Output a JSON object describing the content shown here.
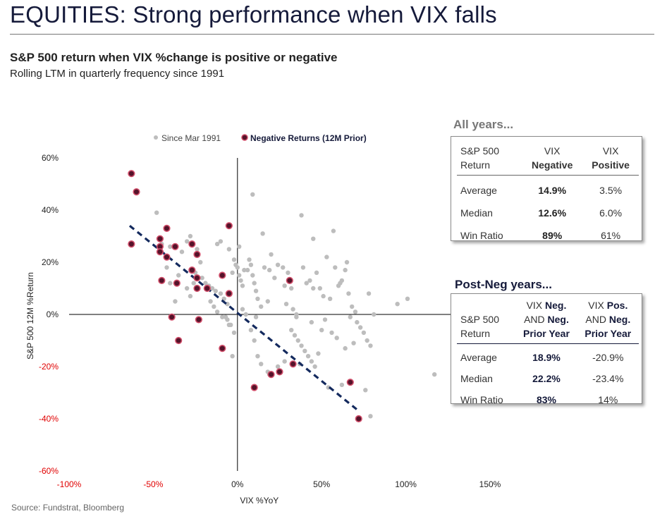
{
  "headline": "EQUITIES: Strong performance when VIX falls",
  "subtitle": "S&P 500 return when VIX %change is positive or negative",
  "subtitle2": "Rolling LTM in quarterly frequency since 1991",
  "source": "Source: Fundstrat, Bloomberg",
  "colors": {
    "navy": "#151a3a",
    "gray_dot": "#bdbdbd",
    "neg_dot_fill": "#55132a",
    "neg_dot_ring": "#d14e6a",
    "negative_tick": "#e00000",
    "trend": "#142a5e"
  },
  "chart_data": {
    "type": "scatter",
    "xlabel": "VIX %YoY",
    "ylabel": "S&P 500 12M %Return",
    "xlim": [
      -100,
      150
    ],
    "ylim": [
      -60,
      60
    ],
    "x_ticks": [
      -100,
      -50,
      0,
      50,
      100,
      150
    ],
    "x_tick_labels": [
      "-100%",
      "-50%",
      "0%",
      "50%",
      "100%",
      "150%"
    ],
    "y_ticks": [
      60,
      40,
      20,
      0,
      -20,
      -40,
      -60
    ],
    "y_tick_labels": [
      "60%",
      "40%",
      "20%",
      "0%",
      "-20%",
      "-40%",
      "-60%"
    ],
    "legend": {
      "position": "top",
      "items": [
        "Since Mar 1991",
        "Negative Returns (12M Prior)"
      ]
    },
    "series": [
      {
        "name": "Since Mar 1991",
        "points": [
          [
            -48,
            39
          ],
          [
            -45,
            27
          ],
          [
            -40,
            26
          ],
          [
            -33,
            24
          ],
          [
            -30,
            28
          ],
          [
            -28,
            30
          ],
          [
            -24,
            25
          ],
          [
            -22,
            20
          ],
          [
            -25,
            16
          ],
          [
            -21,
            14
          ],
          [
            -19,
            12
          ],
          [
            -17,
            11
          ],
          [
            -15,
            10
          ],
          [
            -13,
            9
          ],
          [
            -10,
            8
          ],
          [
            -8,
            6
          ],
          [
            -6,
            4
          ],
          [
            -35,
            15
          ],
          [
            -40,
            12
          ],
          [
            -30,
            10
          ],
          [
            -28,
            7
          ],
          [
            -26,
            12
          ],
          [
            -42,
            18
          ],
          [
            -37,
            5
          ],
          [
            -16,
            5
          ],
          [
            -14,
            3
          ],
          [
            -12,
            1
          ],
          [
            -9,
            -1
          ],
          [
            -6,
            -2
          ],
          [
            -4,
            -4
          ],
          [
            -2,
            -7
          ],
          [
            -10,
            28
          ],
          [
            -12,
            27
          ],
          [
            -5,
            25
          ],
          [
            1,
            26
          ],
          [
            -2,
            21
          ],
          [
            0,
            18
          ],
          [
            1,
            15
          ],
          [
            2,
            13
          ],
          [
            3,
            11
          ],
          [
            -3,
            16
          ],
          [
            -1,
            19
          ],
          [
            4,
            17
          ],
          [
            6,
            17
          ],
          [
            7,
            21
          ],
          [
            8,
            19
          ],
          [
            9,
            15
          ],
          [
            10,
            12
          ],
          [
            11,
            9
          ],
          [
            12,
            6
          ],
          [
            14,
            3
          ],
          [
            15,
            31
          ],
          [
            9,
            46
          ],
          [
            20,
            23
          ],
          [
            16,
            18
          ],
          [
            19,
            17
          ],
          [
            22,
            14
          ],
          [
            24,
            19
          ],
          [
            27,
            18
          ],
          [
            30,
            16
          ],
          [
            28,
            11
          ],
          [
            32,
            10
          ],
          [
            29,
            4
          ],
          [
            33,
            2
          ],
          [
            35,
            0
          ],
          [
            38,
            38
          ],
          [
            39,
            18
          ],
          [
            41,
            12
          ],
          [
            43,
            13
          ],
          [
            45,
            10
          ],
          [
            47,
            16
          ],
          [
            49,
            10
          ],
          [
            51,
            7
          ],
          [
            53,
            22
          ],
          [
            55,
            6
          ],
          [
            57,
            32
          ],
          [
            58,
            18
          ],
          [
            60,
            11
          ],
          [
            61,
            12
          ],
          [
            62,
            13
          ],
          [
            64,
            17
          ],
          [
            65,
            20
          ],
          [
            66,
            8
          ],
          [
            68,
            3
          ],
          [
            70,
            1
          ],
          [
            71,
            -3
          ],
          [
            73,
            -5
          ],
          [
            75,
            -7
          ],
          [
            77,
            -10
          ],
          [
            79,
            -12
          ],
          [
            67,
            -1
          ],
          [
            64,
            -13
          ],
          [
            69,
            -11
          ],
          [
            59,
            -9
          ],
          [
            56,
            -7
          ],
          [
            52,
            -2
          ],
          [
            50,
            -6
          ],
          [
            48,
            -15
          ],
          [
            46,
            -20
          ],
          [
            44,
            -18
          ],
          [
            42,
            -16
          ],
          [
            40,
            -14
          ],
          [
            38,
            -12
          ],
          [
            36,
            -10
          ],
          [
            34,
            -8
          ],
          [
            32,
            -6
          ],
          [
            28,
            -18
          ],
          [
            24,
            -20
          ],
          [
            19,
            -23
          ],
          [
            18,
            -22
          ],
          [
            14,
            -19
          ],
          [
            12,
            -16
          ],
          [
            10,
            -10
          ],
          [
            8,
            -6
          ],
          [
            -3,
            -16
          ],
          [
            -5,
            -4
          ],
          [
            -7,
            -1
          ],
          [
            37,
            -19
          ],
          [
            54,
            -28
          ],
          [
            62,
            -27
          ],
          [
            76,
            -29
          ],
          [
            79,
            -39
          ],
          [
            81,
            0
          ],
          [
            95,
            4
          ],
          [
            101,
            6
          ],
          [
            117,
            -23
          ],
          [
            78,
            8
          ],
          [
            45,
            29
          ],
          [
            44,
            -3
          ],
          [
            35,
            -1
          ],
          [
            3,
            2
          ],
          [
            5,
            0
          ],
          [
            11,
            -1
          ],
          [
            18,
            5
          ]
        ]
      },
      {
        "name": "Negative Returns (12M Prior)",
        "points": [
          [
            -63,
            54
          ],
          [
            -60,
            47
          ],
          [
            -63,
            27
          ],
          [
            -46,
            29
          ],
          [
            -46,
            26
          ],
          [
            -46,
            24
          ],
          [
            -42,
            33
          ],
          [
            -42,
            22
          ],
          [
            -45,
            13
          ],
          [
            -37,
            26
          ],
          [
            -36,
            12
          ],
          [
            -27,
            27
          ],
          [
            -27,
            17
          ],
          [
            -24,
            23
          ],
          [
            -24,
            14
          ],
          [
            -24,
            10
          ],
          [
            -18,
            10
          ],
          [
            -9,
            15
          ],
          [
            -5,
            8
          ],
          [
            -5,
            34
          ],
          [
            -39,
            -1
          ],
          [
            -35,
            -10
          ],
          [
            -23,
            -2
          ],
          [
            -9,
            -13
          ],
          [
            10,
            -28
          ],
          [
            20,
            -23
          ],
          [
            25,
            -22
          ],
          [
            31,
            13
          ],
          [
            33,
            -19
          ],
          [
            67,
            -26
          ],
          [
            72,
            -40
          ]
        ]
      }
    ],
    "trendline": {
      "style": "dashed",
      "from": [
        -64,
        34
      ],
      "to": [
        72,
        -37
      ]
    }
  },
  "tables": {
    "all_years": {
      "title": "All years...",
      "col0_a": "S&P 500",
      "col0_b": "Return",
      "col1_a": "VIX",
      "col1_b": "Negative",
      "col2_a": "VIX",
      "col2_b": "Positive",
      "rows": [
        {
          "label": "Average",
          "neg": "14.9%",
          "pos": "3.5%"
        },
        {
          "label": "Median",
          "neg": "12.6%",
          "pos": "6.0%"
        },
        {
          "label": "Win Ratio",
          "neg": "89%",
          "pos": "61%"
        }
      ]
    },
    "post_neg_years": {
      "title": "Post-Neg years...",
      "col0_a": "S&P 500",
      "col0_b": "Return",
      "col1_a": "VIX ",
      "col1_a_b": "Neg.",
      "col1_b": "AND ",
      "col1_b_b": "Neg.",
      "col1_c": "Prior Year",
      "col2_a": "VIX ",
      "col2_a_b": "Pos.",
      "col2_b": "AND ",
      "col2_b_b": "Neg.",
      "col2_c": "Prior Year",
      "rows": [
        {
          "label": "Average",
          "neg": "18.9%",
          "pos": "-20.9%"
        },
        {
          "label": "Median",
          "neg": "22.2%",
          "pos": "-23.4%"
        },
        {
          "label": "Win Ratio",
          "neg": "83%",
          "pos": "14%"
        }
      ]
    }
  }
}
